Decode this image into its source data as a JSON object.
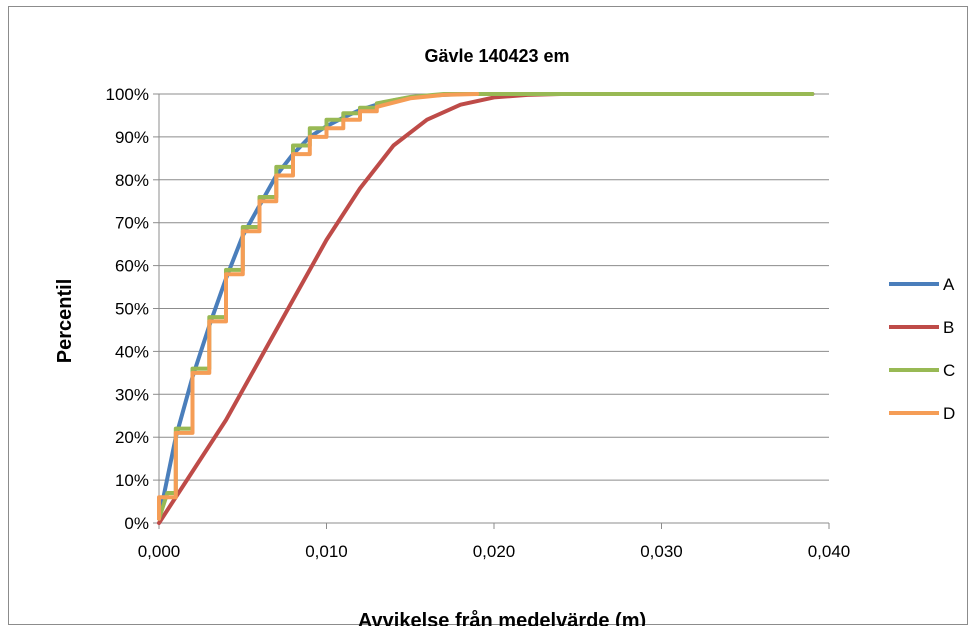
{
  "chart_data": {
    "type": "line",
    "title": "Gävle 140423 em",
    "xlabel": "Avvikelse från medelvärde (m)",
    "ylabel": "Percentil",
    "xlim": [
      0,
      0.04
    ],
    "ylim": [
      0,
      1
    ],
    "x_ticks": [
      0,
      0.01,
      0.02,
      0.03,
      0.04
    ],
    "x_tick_labels": [
      "0,000",
      "0,010",
      "0,020",
      "0,030",
      "0,040"
    ],
    "y_ticks": [
      0,
      0.1,
      0.2,
      0.3,
      0.4,
      0.5,
      0.6,
      0.7,
      0.8,
      0.9,
      1.0
    ],
    "y_tick_labels": [
      "0%",
      "10%",
      "20%",
      "30%",
      "40%",
      "50%",
      "60%",
      "70%",
      "80%",
      "90%",
      "100%"
    ],
    "grid": "horizontal",
    "legend_position": "right",
    "series": [
      {
        "name": "A",
        "color": "#4a7ebb",
        "x": [
          0,
          0.001,
          0.002,
          0.003,
          0.004,
          0.005,
          0.006,
          0.007,
          0.008,
          0.009,
          0.01,
          0.011,
          0.012,
          0.013,
          0.014,
          0.015,
          0.016,
          0.018,
          0.039
        ],
        "y": [
          0.01,
          0.2,
          0.34,
          0.46,
          0.57,
          0.67,
          0.74,
          0.81,
          0.86,
          0.9,
          0.925,
          0.945,
          0.963,
          0.975,
          0.985,
          0.992,
          0.996,
          1.0,
          1.0
        ]
      },
      {
        "name": "B",
        "color": "#be4b48",
        "x": [
          0,
          0.002,
          0.004,
          0.006,
          0.008,
          0.01,
          0.012,
          0.014,
          0.016,
          0.018,
          0.02,
          0.022,
          0.024,
          0.039
        ],
        "y": [
          0,
          0.12,
          0.24,
          0.38,
          0.52,
          0.66,
          0.78,
          0.88,
          0.94,
          0.975,
          0.992,
          0.998,
          1.0,
          1.0
        ]
      },
      {
        "name": "C",
        "color": "#98b954",
        "x": [
          0,
          0.0005,
          0.0005,
          0.001,
          0.001,
          0.002,
          0.002,
          0.003,
          0.003,
          0.004,
          0.004,
          0.005,
          0.005,
          0.006,
          0.006,
          0.007,
          0.007,
          0.008,
          0.008,
          0.009,
          0.009,
          0.01,
          0.01,
          0.011,
          0.011,
          0.012,
          0.012,
          0.013,
          0.013,
          0.015,
          0.017,
          0.039
        ],
        "y": [
          0.01,
          0.07,
          0.07,
          0.07,
          0.22,
          0.22,
          0.36,
          0.36,
          0.48,
          0.48,
          0.59,
          0.59,
          0.69,
          0.69,
          0.76,
          0.76,
          0.83,
          0.83,
          0.88,
          0.88,
          0.92,
          0.92,
          0.94,
          0.94,
          0.955,
          0.955,
          0.968,
          0.968,
          0.978,
          0.993,
          1.0,
          1.0
        ]
      },
      {
        "name": "D",
        "color": "#f59d56",
        "x": [
          0,
          0,
          0.001,
          0.001,
          0.002,
          0.002,
          0.003,
          0.003,
          0.004,
          0.004,
          0.005,
          0.005,
          0.006,
          0.006,
          0.007,
          0.007,
          0.008,
          0.008,
          0.009,
          0.009,
          0.01,
          0.01,
          0.011,
          0.011,
          0.012,
          0.012,
          0.013,
          0.013,
          0.015,
          0.017,
          0.019
        ],
        "y": [
          0.01,
          0.06,
          0.06,
          0.21,
          0.21,
          0.35,
          0.35,
          0.47,
          0.47,
          0.58,
          0.58,
          0.68,
          0.68,
          0.75,
          0.75,
          0.81,
          0.81,
          0.86,
          0.86,
          0.9,
          0.9,
          0.92,
          0.92,
          0.94,
          0.94,
          0.96,
          0.96,
          0.97,
          0.99,
          0.998,
          1.0
        ]
      }
    ]
  }
}
